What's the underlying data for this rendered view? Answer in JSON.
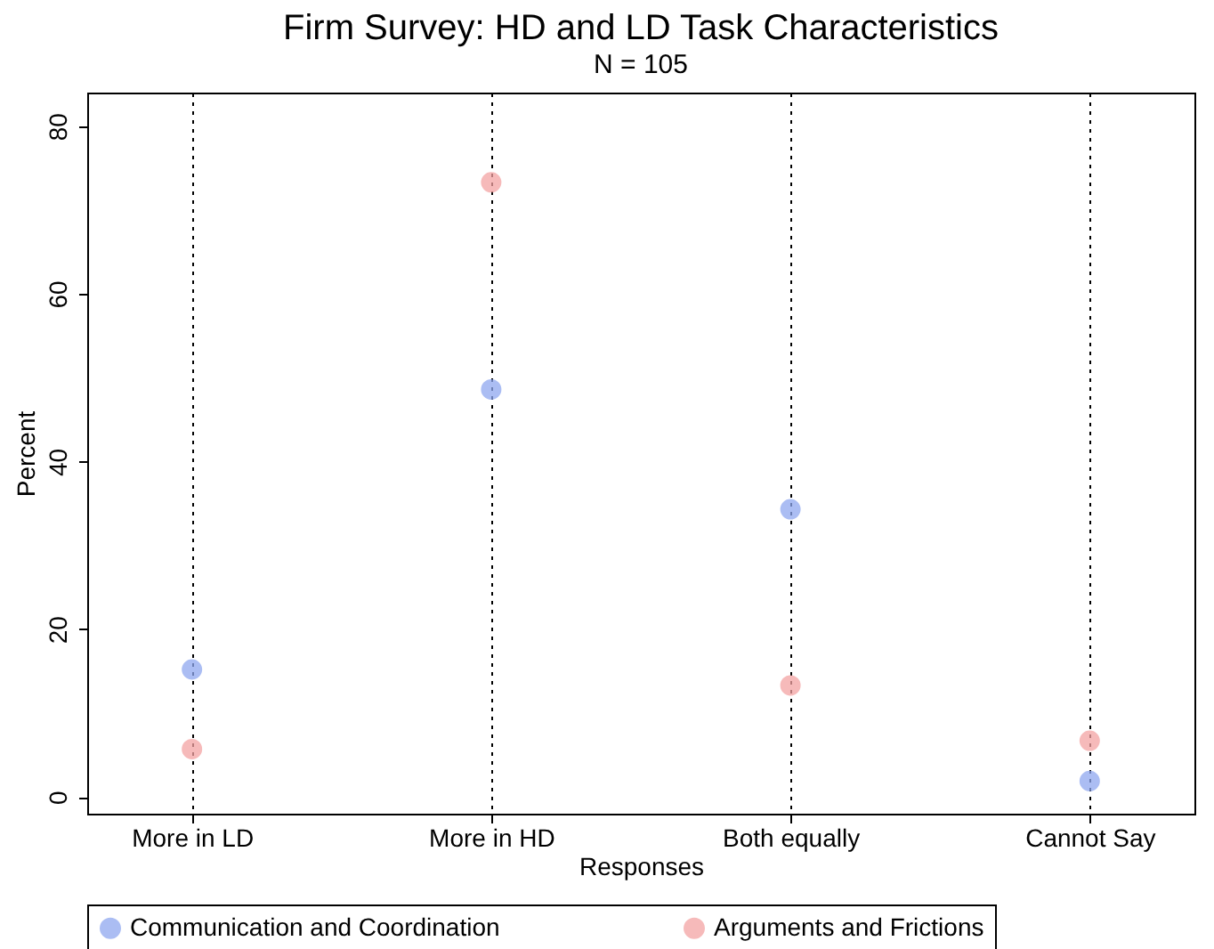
{
  "chart_data": {
    "type": "scatter",
    "title": "Firm Survey: HD and LD Task Characteristics",
    "subtitle": "N = 105",
    "xlabel": "Responses",
    "ylabel": "Percent",
    "categories": [
      "More in LD",
      "More in HD",
      "Both equally",
      "Cannot Say"
    ],
    "series": [
      {
        "name": "Communication and Coordination",
        "color": "#8fa8f0",
        "values": [
          15.2,
          48.6,
          34.3,
          1.9
        ]
      },
      {
        "name": "Arguments and Frictions",
        "color": "#f4a3a3",
        "values": [
          5.7,
          73.3,
          13.3,
          6.7
        ]
      }
    ],
    "ylim": [
      -2,
      84
    ],
    "yticks": [
      0,
      20,
      40,
      60,
      80
    ],
    "grid": "x",
    "legend": "bottom",
    "marker": "circle"
  }
}
